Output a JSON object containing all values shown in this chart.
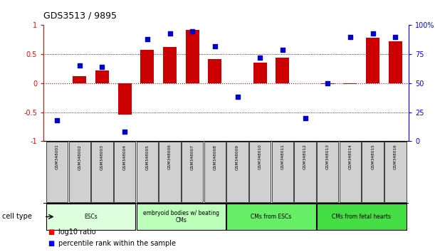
{
  "title": "GDS3513 / 9895",
  "samples": [
    "GSM348001",
    "GSM348002",
    "GSM348003",
    "GSM348004",
    "GSM348005",
    "GSM348006",
    "GSM348007",
    "GSM348008",
    "GSM348009",
    "GSM348010",
    "GSM348011",
    "GSM348012",
    "GSM348013",
    "GSM348014",
    "GSM348015",
    "GSM348016"
  ],
  "log10_ratio": [
    0.0,
    0.12,
    0.22,
    -0.54,
    0.58,
    0.62,
    0.92,
    0.42,
    0.0,
    0.35,
    0.44,
    0.0,
    -0.02,
    -0.02,
    0.78,
    0.72
  ],
  "percentile_rank": [
    18,
    65,
    64,
    8,
    88,
    93,
    95,
    82,
    38,
    72,
    79,
    20,
    50,
    90,
    93,
    90
  ],
  "cell_types": [
    {
      "label": "ESCs",
      "start": 0,
      "end": 3,
      "color": "#ddffdd"
    },
    {
      "label": "embryoid bodies w/ beating\nCMs",
      "start": 4,
      "end": 7,
      "color": "#bbffbb"
    },
    {
      "label": "CMs from ESCs",
      "start": 8,
      "end": 11,
      "color": "#66ee66"
    },
    {
      "label": "CMs from fetal hearts",
      "start": 12,
      "end": 15,
      "color": "#44dd44"
    }
  ],
  "bar_color": "#cc0000",
  "dot_color": "#0000cc",
  "ylim_left": [
    -1,
    1
  ],
  "ylim_right": [
    0,
    100
  ],
  "yticks_left": [
    -1,
    -0.5,
    0,
    0.5,
    1
  ],
  "ytick_labels_left": [
    "-1",
    "-0.5",
    "0",
    "0.5",
    "1"
  ],
  "yticks_right": [
    0,
    25,
    50,
    75,
    100
  ],
  "ytick_labels_right": [
    "0",
    "25",
    "50",
    "75",
    "100%"
  ],
  "hline_color": "#cc0000",
  "dotted_lines": [
    -0.5,
    0.5
  ],
  "sample_box_color": "#d0d0d0"
}
